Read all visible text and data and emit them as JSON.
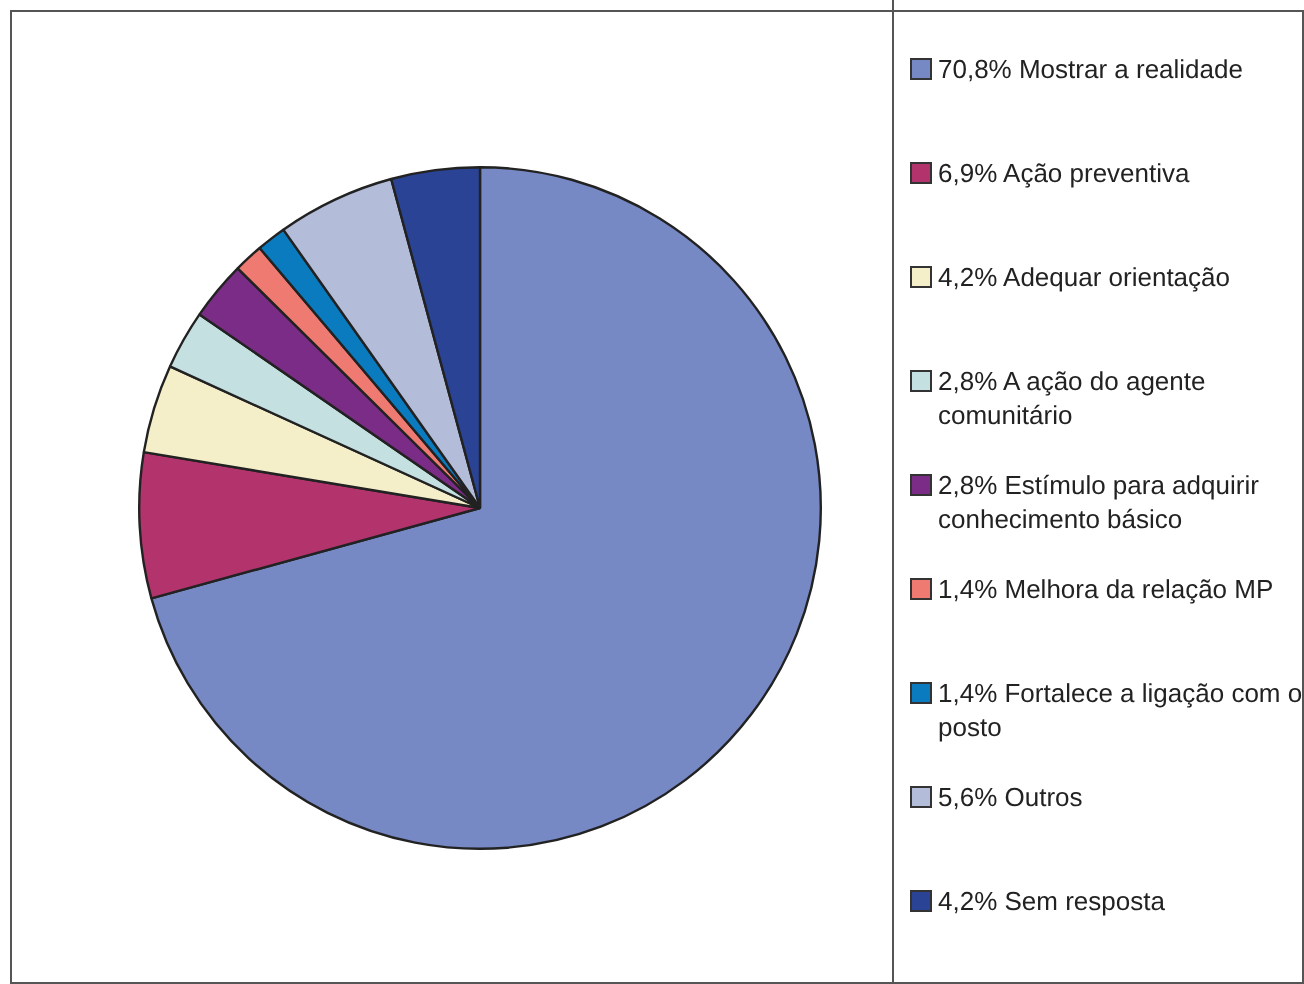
{
  "chart_data": {
    "type": "pie",
    "categories": [
      "70,8% Mostrar a realidade",
      "6,9% Ação preventiva",
      "4,2% Adequar orientação",
      "2,8% A ação do agente comunitário",
      "2,8% Estímulo para adquirir conhecimento básico",
      "1,4% Melhora da relação MP",
      "1,4% Fortalece a ligação com o posto",
      "5,6% Outros",
      "4,2% Sem resposta"
    ],
    "values": [
      70.8,
      6.9,
      4.2,
      2.8,
      2.8,
      1.4,
      1.4,
      5.6,
      4.2
    ],
    "colors": [
      "#7689c4",
      "#b3346d",
      "#f5efc9",
      "#c5e0e1",
      "#7a2c86",
      "#ef7a72",
      "#0a7bbf",
      "#b3bcd9",
      "#2a4394"
    ],
    "legend": "right"
  }
}
